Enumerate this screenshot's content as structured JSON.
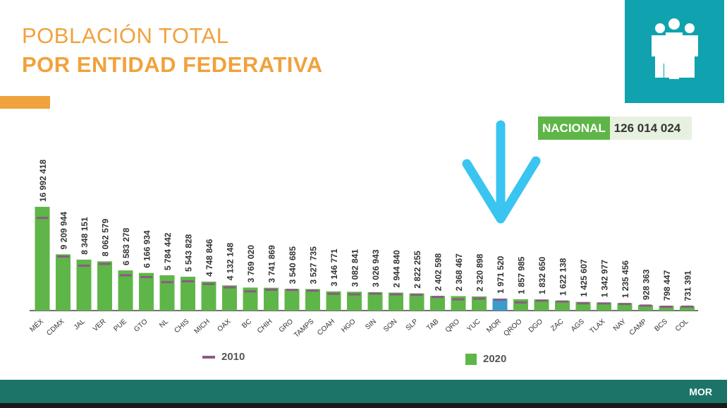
{
  "header": {
    "title_line1": "POBLACIÓN TOTAL",
    "title_line2": "POR ENTIDAD FEDERATIVA"
  },
  "icon": {
    "name": "family-icon"
  },
  "nacional": {
    "label": "NACIONAL",
    "value": "126 014 024"
  },
  "footer": {
    "code": "MOR"
  },
  "colors": {
    "bar_2020": "#5FB648",
    "marker_2010": "#8C5A86",
    "highlight_bar": "#3C9BCB",
    "accent": "#F0A23C",
    "arrow": "#39C5F0"
  },
  "chart_data": {
    "type": "bar",
    "categories": [
      "MÉX",
      "CDMX",
      "JAL",
      "VER",
      "PUE",
      "GTO",
      "NL",
      "CHIS",
      "MICH",
      "OAX",
      "BC",
      "CHIH",
      "GRO",
      "TAMPS",
      "COAH",
      "HGO",
      "SIN",
      "SON",
      "SLP",
      "TAB",
      "QRO",
      "YUC",
      "MOR",
      "QROO",
      "DGO",
      "ZAC",
      "AGS",
      "TLAX",
      "NAY",
      "CAMP",
      "BCS",
      "COL"
    ],
    "labels": [
      "16 992 418",
      "9 209 944",
      "8 348 151",
      "8 062 579",
      "6 583 278",
      "6 166 934",
      "5 784 442",
      "5 543 828",
      "4 748 846",
      "4 132 148",
      "3 769 020",
      "3 741 869",
      "3 540 685",
      "3 527 735",
      "3 146 771",
      "3 082 841",
      "3 026 943",
      "2 944 840",
      "2 822 255",
      "2 402 598",
      "2 368 467",
      "2 320 898",
      "1 971 520",
      "1 857 985",
      "1 832 650",
      "1 622 138",
      "1 425 607",
      "1 342 977",
      "1 235 456",
      "928 363",
      "798 447",
      "731 391"
    ],
    "series": [
      {
        "name": "2020",
        "values": [
          16992418,
          9209944,
          8348151,
          8062579,
          6583278,
          6166934,
          5784442,
          5543828,
          4748846,
          4132148,
          3769020,
          3741869,
          3540685,
          3527735,
          3146771,
          3082841,
          3026943,
          2944840,
          2822255,
          2402598,
          2368467,
          2320898,
          1971520,
          1857985,
          1832650,
          1622138,
          1425607,
          1342977,
          1235456,
          928363,
          798447,
          731391
        ]
      },
      {
        "name": "2010",
        "values": [
          15175862,
          8851080,
          7350682,
          7643194,
          5779829,
          5486372,
          4653458,
          4796580,
          4351037,
          3801962,
          3155070,
          3406465,
          3388768,
          3268554,
          2748391,
          2665018,
          2767761,
          2662480,
          2585518,
          2238603,
          1827937,
          1955577,
          1777227,
          1325578,
          1632934,
          1490668,
          1184996,
          1169936,
          1084979,
          822441,
          637026,
          650555
        ]
      }
    ],
    "highlight_category": "MOR",
    "legend": [
      "2010",
      "2020"
    ],
    "legend_placement": "bottom",
    "grid": false
  }
}
